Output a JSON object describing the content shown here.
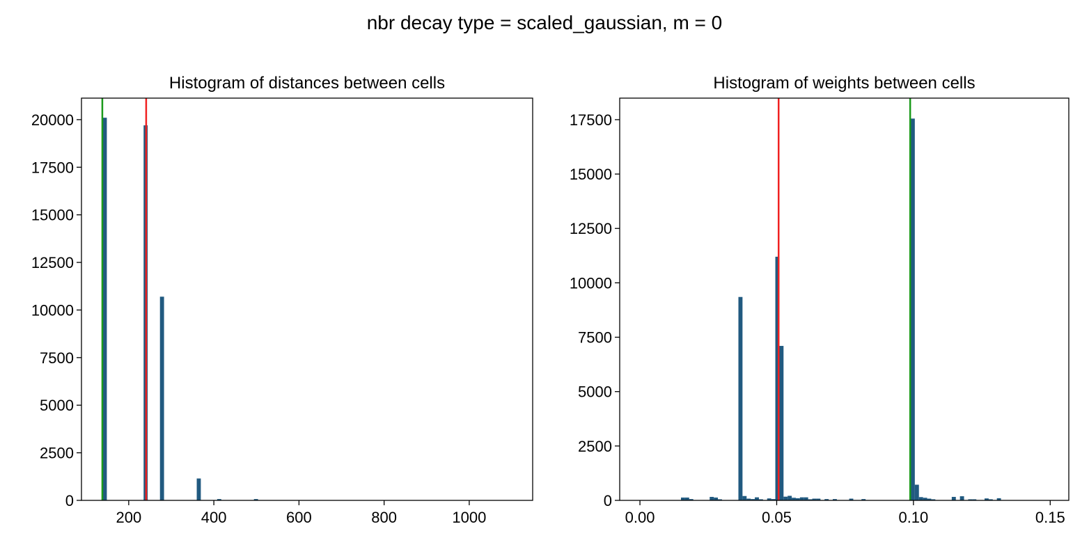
{
  "suptitle": "nbr decay type = scaled_gaussian, m = 0",
  "colors": {
    "bar": "#215a80",
    "red_line": "#f02020",
    "green_line": "#1a9a1a"
  },
  "chart_data": [
    {
      "type": "bar",
      "title": "Histogram of distances between cells",
      "xlabel": "",
      "ylabel": "",
      "xlim": [
        89,
        1149
      ],
      "ylim": [
        0,
        21130
      ],
      "bin_start": 139,
      "bin_width": 9.6,
      "bars": [
        [
          0,
          20100
        ],
        [
          10,
          19700
        ],
        [
          14,
          10700
        ],
        [
          23,
          1150
        ],
        [
          28,
          70
        ],
        [
          37,
          70
        ]
      ],
      "xticks": [
        200,
        400,
        600,
        800,
        1000
      ],
      "xtick_labels": [
        "200",
        "400",
        "600",
        "800",
        "1000"
      ],
      "yticks": [
        0,
        2500,
        5000,
        7500,
        10000,
        12500,
        15000,
        17500,
        20000
      ],
      "ytick_labels": [
        "0",
        "2500",
        "5000",
        "7500",
        "10000",
        "12500",
        "15000",
        "17500",
        "20000"
      ],
      "vlines": [
        {
          "x": 241,
          "color": "red"
        },
        {
          "x": 138,
          "color": "green"
        }
      ]
    },
    {
      "type": "bar",
      "title": "Histogram of weights between cells",
      "xlabel": "",
      "ylabel": "",
      "xlim": [
        -0.0074,
        0.1568
      ],
      "ylim": [
        0,
        18490
      ],
      "bin_start": 0,
      "bin_width": 0.0015,
      "bars": [
        [
          10,
          130
        ],
        [
          11,
          130
        ],
        [
          12,
          60
        ],
        [
          17,
          160
        ],
        [
          18,
          130
        ],
        [
          19,
          50
        ],
        [
          24,
          9350
        ],
        [
          25,
          200
        ],
        [
          26,
          80
        ],
        [
          27,
          60
        ],
        [
          28,
          140
        ],
        [
          29,
          50
        ],
        [
          31,
          90
        ],
        [
          32,
          60
        ],
        [
          33,
          11200
        ],
        [
          34,
          7100
        ],
        [
          35,
          170
        ],
        [
          36,
          210
        ],
        [
          37,
          120
        ],
        [
          38,
          100
        ],
        [
          39,
          140
        ],
        [
          40,
          140
        ],
        [
          41,
          50
        ],
        [
          42,
          80
        ],
        [
          43,
          80
        ],
        [
          45,
          60
        ],
        [
          47,
          60
        ],
        [
          51,
          80
        ],
        [
          54,
          60
        ],
        [
          66,
          17550
        ],
        [
          67,
          720
        ],
        [
          68,
          150
        ],
        [
          69,
          120
        ],
        [
          70,
          80
        ],
        [
          71,
          50
        ],
        [
          76,
          160
        ],
        [
          78,
          190
        ],
        [
          80,
          50
        ],
        [
          81,
          50
        ],
        [
          84,
          90
        ],
        [
          85,
          50
        ],
        [
          87,
          100
        ]
      ],
      "xticks": [
        0,
        0.05,
        0.1,
        0.15
      ],
      "xtick_labels": [
        "0.00",
        "0.05",
        "0.10",
        "0.15"
      ],
      "yticks": [
        0,
        2500,
        5000,
        7500,
        10000,
        12500,
        15000,
        17500
      ],
      "ytick_labels": [
        "0",
        "2500",
        "5000",
        "7500",
        "10000",
        "12500",
        "15000",
        "17500"
      ],
      "vlines": [
        {
          "x": 0.0507,
          "color": "red"
        },
        {
          "x": 0.0988,
          "color": "green"
        }
      ]
    }
  ]
}
